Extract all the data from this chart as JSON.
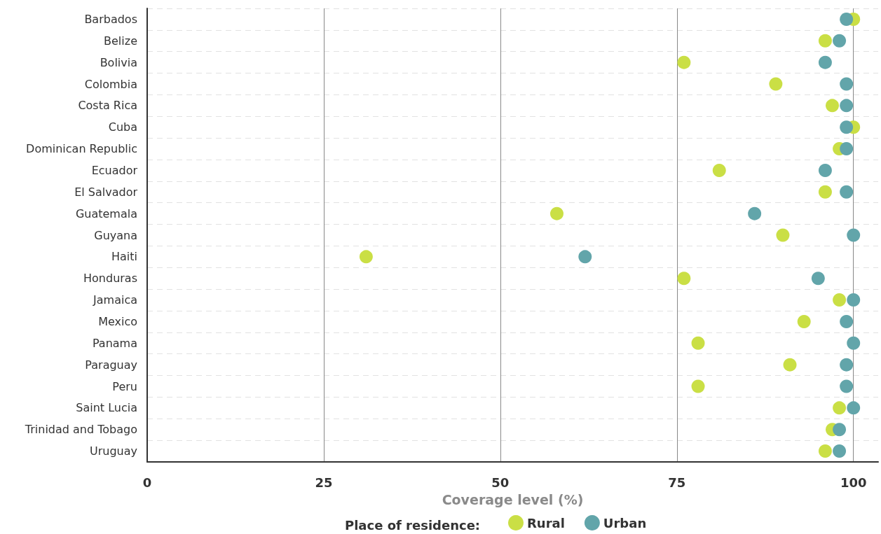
{
  "chart_data": {
    "type": "scatter",
    "orientation": "horizontal",
    "xlabel": "Coverage level (%)",
    "legend_title": "Place of residence:",
    "categories": [
      "Barbados",
      "Belize",
      "Bolivia",
      "Colombia",
      "Costa Rica",
      "Cuba",
      "Dominican Republic",
      "Ecuador",
      "El Salvador",
      "Guatemala",
      "Guyana",
      "Haiti",
      "Honduras",
      "Jamaica",
      "Mexico",
      "Panama",
      "Paraguay",
      "Peru",
      "Saint Lucia",
      "Trinidad and Tobago",
      "Uruguay"
    ],
    "series": [
      {
        "name": "Rural",
        "color": "#cadf45",
        "values": [
          100,
          96,
          76,
          89,
          97,
          100,
          98,
          81,
          96,
          58,
          90,
          31,
          76,
          98,
          93,
          78,
          91,
          78,
          98,
          97,
          96
        ]
      },
      {
        "name": "Urban",
        "color": "#62a5aa",
        "values": [
          99,
          98,
          96,
          99,
          99,
          99,
          99,
          96,
          99,
          86,
          100,
          62,
          95,
          100,
          99,
          100,
          99,
          99,
          100,
          98,
          98
        ]
      }
    ],
    "xlim": [
      0,
      103.5
    ],
    "xticks": [
      0,
      25,
      50,
      75,
      100
    ],
    "grid": true,
    "legend": "bottom",
    "marker": "circle"
  }
}
